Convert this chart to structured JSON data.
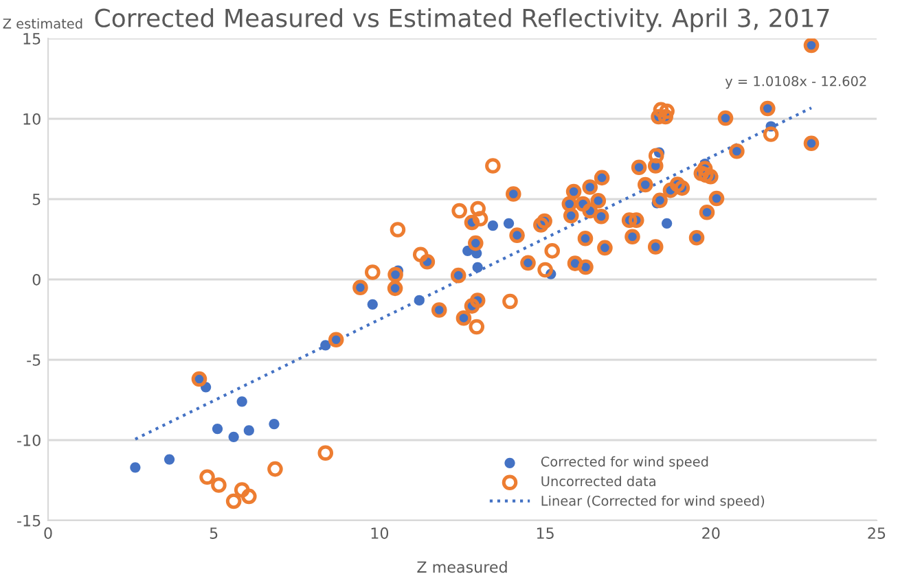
{
  "chart_data": {
    "type": "scatter",
    "title": "Corrected Measured vs Estimated Reflectivity. April 3, 2017",
    "xlabel": "Z measured",
    "ylabel": "Z estimated",
    "xlim": [
      0,
      25
    ],
    "xticks": [
      0,
      5,
      10,
      15,
      20,
      25
    ],
    "ylim": [
      -15,
      15
    ],
    "yticks": [
      -15,
      -10,
      -5,
      0,
      5,
      10,
      15
    ],
    "grid": "y",
    "legend": "bottom right",
    "marker": "circle",
    "annotations": [
      {
        "text": "y = 1.0108x - 12.602",
        "x": 23.03,
        "y": 10.68
      }
    ],
    "series": [
      {
        "name": "Corrected for wind speed",
        "color": "#4472c4",
        "x": [
          4.56,
          8.69,
          9.42,
          10.48,
          10.47,
          11.8,
          12.38,
          12.54,
          12.79,
          12.96,
          11.44,
          14.48,
          15.9,
          16.22,
          12.79,
          12.9,
          23.03,
          21.71,
          23.03,
          20.44,
          20.78,
          18.42,
          18.63,
          18.33,
          17.83,
          19.71,
          19.99,
          18.02,
          18.78,
          18.99,
          19.13,
          20.17,
          18.46,
          19.88,
          19.57,
          18.33,
          17.54,
          17.75,
          17.63,
          16.71,
          16.35,
          15.86,
          15.73,
          16.14,
          16.6,
          15.78,
          16.35,
          16.69,
          16.8,
          16.21,
          14.15,
          14.87,
          14.98,
          14.04,
          2.63,
          3.66,
          4.76,
          5.11,
          5.6,
          5.85,
          6.06,
          6.82,
          8.37,
          9.79,
          10.56,
          11.2,
          12.96,
          12.66,
          12.93,
          15.17,
          21.81,
          18.44,
          19.82,
          18.37,
          18.67,
          13.42,
          13.9
        ],
        "values": [
          -6.2,
          -3.75,
          -0.5,
          0.3,
          -0.55,
          -1.9,
          0.25,
          -2.4,
          -1.65,
          -1.3,
          1.1,
          1.03,
          1.0,
          0.77,
          3.55,
          2.26,
          14.57,
          10.64,
          8.47,
          10.04,
          7.98,
          10.13,
          10.13,
          7.07,
          6.98,
          6.6,
          6.4,
          5.9,
          5.55,
          5.92,
          5.69,
          5.04,
          4.92,
          4.18,
          2.6,
          2.03,
          3.69,
          3.69,
          2.66,
          6.33,
          5.75,
          5.47,
          4.7,
          4.7,
          4.9,
          3.97,
          4.27,
          3.92,
          1.97,
          2.55,
          2.75,
          3.4,
          3.63,
          5.32,
          -11.7,
          -11.2,
          -6.7,
          -9.3,
          -9.8,
          -7.6,
          -9.4,
          -9.0,
          -4.1,
          -1.55,
          0.55,
          -1.3,
          0.75,
          1.78,
          1.63,
          0.34,
          9.53,
          7.9,
          7.2,
          4.75,
          3.49,
          3.35,
          3.49
        ]
      },
      {
        "name": "Uncorrected data",
        "marker": "open circle",
        "color": "#ed7d31",
        "x": [
          4.56,
          8.69,
          9.42,
          10.48,
          10.47,
          11.8,
          12.38,
          12.54,
          12.79,
          12.96,
          11.44,
          14.48,
          15.9,
          16.22,
          12.79,
          12.9,
          23.03,
          21.71,
          23.03,
          20.44,
          20.78,
          18.42,
          18.63,
          18.33,
          17.83,
          19.71,
          19.85,
          19.99,
          18.02,
          18.78,
          18.99,
          19.13,
          20.17,
          18.46,
          19.88,
          19.57,
          18.33,
          17.54,
          17.75,
          17.63,
          16.71,
          16.35,
          15.86,
          15.73,
          16.14,
          16.6,
          15.78,
          16.35,
          16.69,
          16.8,
          16.21,
          14.15,
          14.87,
          14.98,
          14.04,
          4.8,
          5.15,
          5.6,
          5.85,
          6.06,
          6.85,
          8.37,
          9.79,
          12.93,
          13.94,
          15.0,
          15.21,
          10.55,
          11.24,
          12.41,
          12.97,
          13.04,
          13.42,
          21.81,
          18.49,
          18.67,
          18.35,
          19.82
        ],
        "values": [
          -6.2,
          -3.75,
          -0.5,
          0.3,
          -0.55,
          -1.9,
          0.25,
          -2.4,
          -1.65,
          -1.3,
          1.1,
          1.03,
          1.0,
          0.77,
          3.55,
          2.26,
          14.57,
          10.64,
          8.47,
          10.04,
          7.98,
          10.13,
          10.13,
          7.07,
          6.98,
          6.6,
          6.5,
          6.4,
          5.9,
          5.55,
          5.92,
          5.69,
          5.04,
          4.92,
          4.18,
          2.6,
          2.03,
          3.69,
          3.69,
          2.66,
          6.33,
          5.75,
          5.47,
          4.7,
          4.7,
          4.9,
          3.97,
          4.27,
          3.92,
          1.97,
          2.55,
          2.75,
          3.4,
          3.63,
          5.32,
          -12.3,
          -12.8,
          -13.8,
          -13.1,
          -13.5,
          -11.8,
          -10.8,
          0.45,
          -2.95,
          -1.37,
          0.6,
          1.78,
          3.1,
          1.55,
          4.27,
          4.4,
          3.78,
          7.07,
          9.04,
          10.56,
          10.47,
          7.7,
          6.9
        ]
      },
      {
        "name": "Linear (Corrected for wind speed)",
        "type": "line",
        "line_style": "dotted",
        "marker": "none",
        "color": "#4472c4",
        "x": [
          2.63,
          23.03
        ],
        "values": [
          -9.94,
          10.68
        ]
      }
    ]
  }
}
